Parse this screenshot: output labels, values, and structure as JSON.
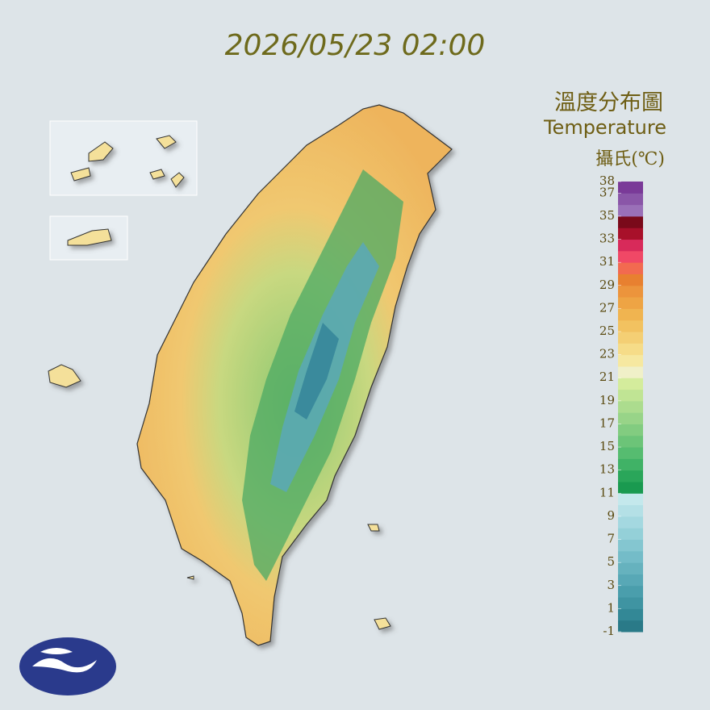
{
  "timestamp": "2026/05/23 02:00",
  "title": "溫度分布圖",
  "subtitle": "Temperature",
  "unit": "攝氏(℃)",
  "legend": {
    "ticks": [
      38,
      37,
      35,
      33,
      31,
      29,
      27,
      25,
      23,
      21,
      19,
      17,
      15,
      13,
      11,
      9,
      7,
      5,
      3,
      1,
      -1
    ],
    "colors": [
      "#2a7a88",
      "#338896",
      "#3f94a2",
      "#4a9eac",
      "#58a8b6",
      "#66b2be",
      "#74bcc8",
      "#84c6d0",
      "#94d0d8",
      "#a4d8e0",
      "#b4e0e6",
      "#c4e8ec",
      "#1a9a50",
      "#2aa65a",
      "#40b266",
      "#56bc70",
      "#6cc478",
      "#82cc80",
      "#98d488",
      "#acdc8e",
      "#c0e494",
      "#d4ec9c",
      "#f0f0c8",
      "#f6e8a0",
      "#f6dc88",
      "#f4cf74",
      "#f2c260",
      "#f0b450",
      "#eea444",
      "#ec943c",
      "#e88030",
      "#f26a50",
      "#f04866",
      "#d82a5a",
      "#a8102a",
      "#7a0a1a",
      "#9a70b8",
      "#8a56a8",
      "#7a3a98"
    ]
  }
}
